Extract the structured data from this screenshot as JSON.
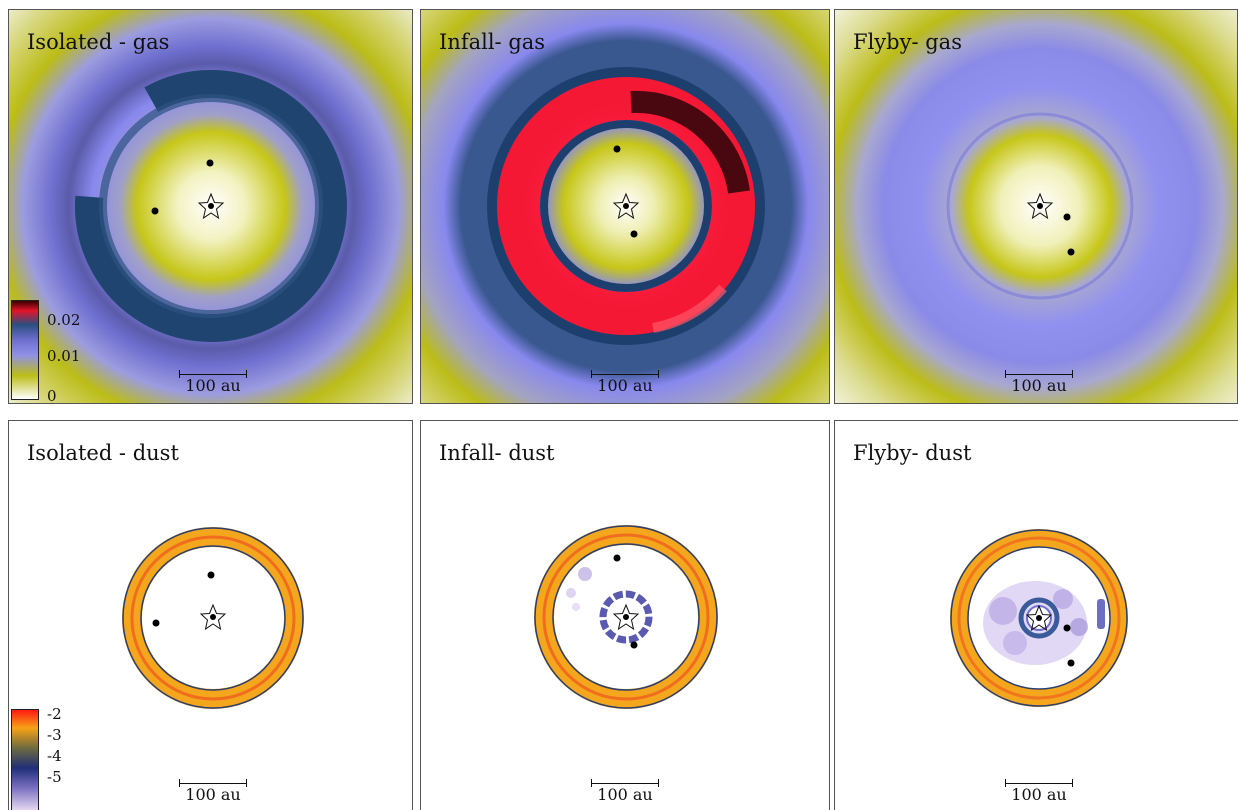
{
  "panels": {
    "isolated_gas": {
      "title": "Isolated - gas",
      "scale": "100 au"
    },
    "infall_gas": {
      "title": "Infall- gas",
      "scale": "100 au"
    },
    "flyby_gas": {
      "title": "Flyby- gas",
      "scale": "100 au"
    },
    "isolated_dust": {
      "title": "Isolated - dust",
      "scale": "100 au"
    },
    "infall_dust": {
      "title": "Infall- dust",
      "scale": "100 au"
    },
    "flyby_dust": {
      "title": "Flyby- dust",
      "scale": "100 au"
    }
  },
  "colorbar_gas": {
    "ticks": [
      "0.02",
      "0.01",
      "0"
    ]
  },
  "colorbar_dust": {
    "ticks": [
      "-2",
      "-3",
      "-4",
      "-5"
    ]
  },
  "colors": {
    "yellow": "#bcbc14",
    "pale": "#fbfbe6",
    "blue": "#8e8ef0",
    "navy": "#1d3f6e",
    "red": "#ff1530",
    "orange": "#f7a215"
  }
}
